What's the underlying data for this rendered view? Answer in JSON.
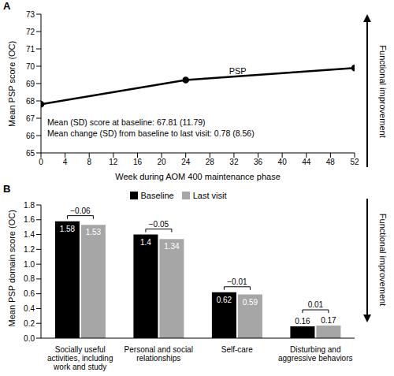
{
  "chart_data": [
    {
      "type": "line",
      "title": "A",
      "x": [
        0,
        24,
        52
      ],
      "series": [
        {
          "name": "PSP",
          "color": "#000000",
          "values": [
            67.81,
            69.2,
            69.9
          ],
          "marker": "circle"
        }
      ],
      "x_label": "Week during AOM 400 maintenance phase",
      "y_label": "Mean PSP score (OC)",
      "xlim": [
        0,
        52
      ],
      "xticks": [
        0,
        4,
        8,
        12,
        16,
        20,
        24,
        28,
        32,
        36,
        40,
        44,
        48,
        52
      ],
      "ylim": [
        65,
        73
      ],
      "yticks": [
        65,
        66,
        67,
        68,
        69,
        70,
        71,
        72,
        73
      ],
      "grid": false,
      "annotations": [
        "Mean (SD) score at baseline: 67.81 (11.79)",
        "Mean change (SD) from baseline to last visit: 0.78 (8.56)",
        "Functional improvement"
      ]
    },
    {
      "type": "bar",
      "title": "B",
      "categories": [
        "Socially useful activities, including work and study",
        "Personal and social relationships",
        "Self-care",
        "Disturbing and aggressive behaviors"
      ],
      "series": [
        {
          "name": "Baseline",
          "color": "#000000",
          "values": [
            1.58,
            1.4,
            0.62,
            0.16
          ]
        },
        {
          "name": "Last visit",
          "color": "#a6a6a6",
          "values": [
            1.53,
            1.34,
            0.59,
            0.17
          ]
        }
      ],
      "difference_labels": [
        "−0.06",
        "−0.05",
        "−0.01",
        "0.01"
      ],
      "y_label": "Mean PSP domain score (OC)",
      "ylim": [
        0,
        1.8
      ],
      "yticks": [
        {
          "value": 0,
          "label": "0.0"
        },
        0.2,
        0.4,
        0.6,
        0.8,
        {
          "value": 1,
          "label": "1.0"
        },
        1.2,
        1.4,
        1.6,
        1.8
      ],
      "grid": false,
      "legend": "top",
      "data_labels": true,
      "annotations": [
        "Functional improvement"
      ]
    }
  ]
}
